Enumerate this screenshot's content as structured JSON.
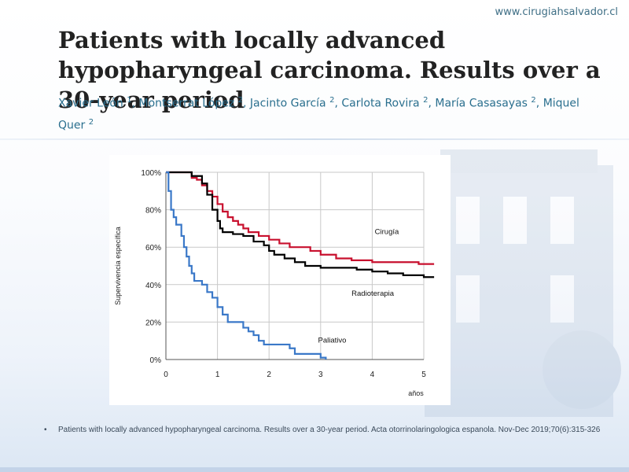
{
  "header": {
    "site_url": "www.cirugiahsalvador.cl"
  },
  "slide": {
    "title": "Patients with locally advanced hypopharyngeal carcinoma. Results over a 30-year period",
    "authors": [
      {
        "name": "Xavier León",
        "aff": "1"
      },
      {
        "name": "Montserrat López",
        "aff": "2"
      },
      {
        "name": "Jacinto García",
        "aff": "2"
      },
      {
        "name": "Carlota Rovira",
        "aff": "2"
      },
      {
        "name": "María Casasayas",
        "aff": "2"
      },
      {
        "name": "Miquel Quer",
        "aff": "2"
      }
    ],
    "footnote_bullet": "•",
    "footnote": "Patients with locally advanced hypopharyngeal carcinoma. Results over a 30-year period. Acta otorrinolaringologica espanola. Nov-Dec 2019;70(6):315-326"
  },
  "chart_data": {
    "type": "line",
    "ylabel": "Supervivencia específica",
    "xlabel": "años",
    "xlim": [
      0,
      5
    ],
    "ylim": [
      0,
      100
    ],
    "x_ticks": [
      "0",
      "1",
      "2",
      "3",
      "4",
      "5"
    ],
    "y_ticks": [
      "0%",
      "20%",
      "40%",
      "60%",
      "80%",
      "100%"
    ],
    "grid": true,
    "series": [
      {
        "name": "Cirugía",
        "color": "#c8102e",
        "step": true,
        "points": [
          [
            0,
            100
          ],
          [
            0.45,
            100
          ],
          [
            0.5,
            97
          ],
          [
            0.6,
            96
          ],
          [
            0.7,
            93
          ],
          [
            0.8,
            90
          ],
          [
            0.9,
            87
          ],
          [
            1.0,
            83
          ],
          [
            1.1,
            79
          ],
          [
            1.2,
            76
          ],
          [
            1.3,
            74
          ],
          [
            1.4,
            72
          ],
          [
            1.5,
            70
          ],
          [
            1.6,
            68
          ],
          [
            1.8,
            66
          ],
          [
            2.0,
            64
          ],
          [
            2.2,
            62
          ],
          [
            2.4,
            60
          ],
          [
            2.8,
            58
          ],
          [
            3.0,
            56
          ],
          [
            3.3,
            54
          ],
          [
            3.6,
            53
          ],
          [
            4.0,
            52
          ],
          [
            4.5,
            52
          ],
          [
            4.9,
            51
          ],
          [
            5.2,
            51
          ]
        ]
      },
      {
        "name": "Radioterapia",
        "color": "#000000",
        "step": true,
        "points": [
          [
            0,
            100
          ],
          [
            0.45,
            100
          ],
          [
            0.5,
            98
          ],
          [
            0.7,
            94
          ],
          [
            0.8,
            88
          ],
          [
            0.9,
            80
          ],
          [
            1.0,
            74
          ],
          [
            1.05,
            70
          ],
          [
            1.1,
            68
          ],
          [
            1.3,
            67
          ],
          [
            1.5,
            66
          ],
          [
            1.7,
            63
          ],
          [
            1.9,
            61
          ],
          [
            2.0,
            58
          ],
          [
            2.1,
            56
          ],
          [
            2.3,
            54
          ],
          [
            2.5,
            52
          ],
          [
            2.7,
            50
          ],
          [
            3.0,
            49
          ],
          [
            3.5,
            49
          ],
          [
            3.7,
            48
          ],
          [
            4.0,
            47
          ],
          [
            4.3,
            46
          ],
          [
            4.6,
            45
          ],
          [
            5.0,
            44
          ],
          [
            5.2,
            44
          ]
        ]
      },
      {
        "name": "Paliativo",
        "color": "#3a78c8",
        "step": true,
        "points": [
          [
            0,
            100
          ],
          [
            0.05,
            90
          ],
          [
            0.1,
            80
          ],
          [
            0.15,
            76
          ],
          [
            0.2,
            72
          ],
          [
            0.3,
            66
          ],
          [
            0.35,
            60
          ],
          [
            0.4,
            55
          ],
          [
            0.45,
            50
          ],
          [
            0.5,
            46
          ],
          [
            0.55,
            42
          ],
          [
            0.7,
            40
          ],
          [
            0.8,
            36
          ],
          [
            0.9,
            33
          ],
          [
            1.0,
            28
          ],
          [
            1.1,
            24
          ],
          [
            1.2,
            20
          ],
          [
            1.5,
            17
          ],
          [
            1.6,
            15
          ],
          [
            1.7,
            13
          ],
          [
            1.8,
            10
          ],
          [
            1.9,
            8
          ],
          [
            2.4,
            6
          ],
          [
            2.5,
            3
          ],
          [
            2.9,
            3
          ],
          [
            3.0,
            1
          ],
          [
            3.1,
            0
          ]
        ]
      }
    ],
    "annotations": [
      {
        "text": "Cirugía",
        "x": 4.05,
        "y": 67
      },
      {
        "text": "Radioterapia",
        "x": 3.6,
        "y": 34
      },
      {
        "text": "Paliativo",
        "x": 2.95,
        "y": 9
      }
    ]
  }
}
